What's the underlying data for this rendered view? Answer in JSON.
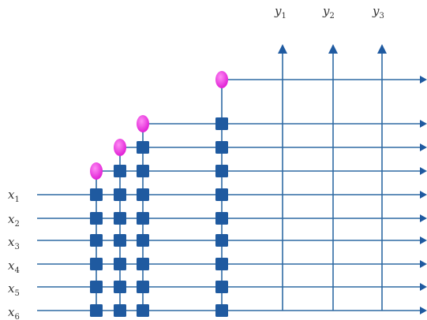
{
  "inputs": [
    {
      "base": "x",
      "sub": "1"
    },
    {
      "base": "x",
      "sub": "2"
    },
    {
      "base": "x",
      "sub": "3"
    },
    {
      "base": "x",
      "sub": "4"
    },
    {
      "base": "x",
      "sub": "5"
    },
    {
      "base": "x",
      "sub": "6"
    }
  ],
  "outputs": [
    {
      "base": "y",
      "sub": "1"
    },
    {
      "base": "y",
      "sub": "2"
    },
    {
      "base": "y",
      "sub": "3"
    }
  ],
  "colors": {
    "line": "#2f6aa3",
    "node": "#1f5aa0",
    "oval": "#ee2be0"
  },
  "structure": {
    "stage_input_counts": [
      6,
      7,
      8,
      9
    ],
    "oval_node_icon": "magenta-oval",
    "square_node_icon": "blue-square",
    "arrow_icon": "triangle-arrowhead"
  }
}
